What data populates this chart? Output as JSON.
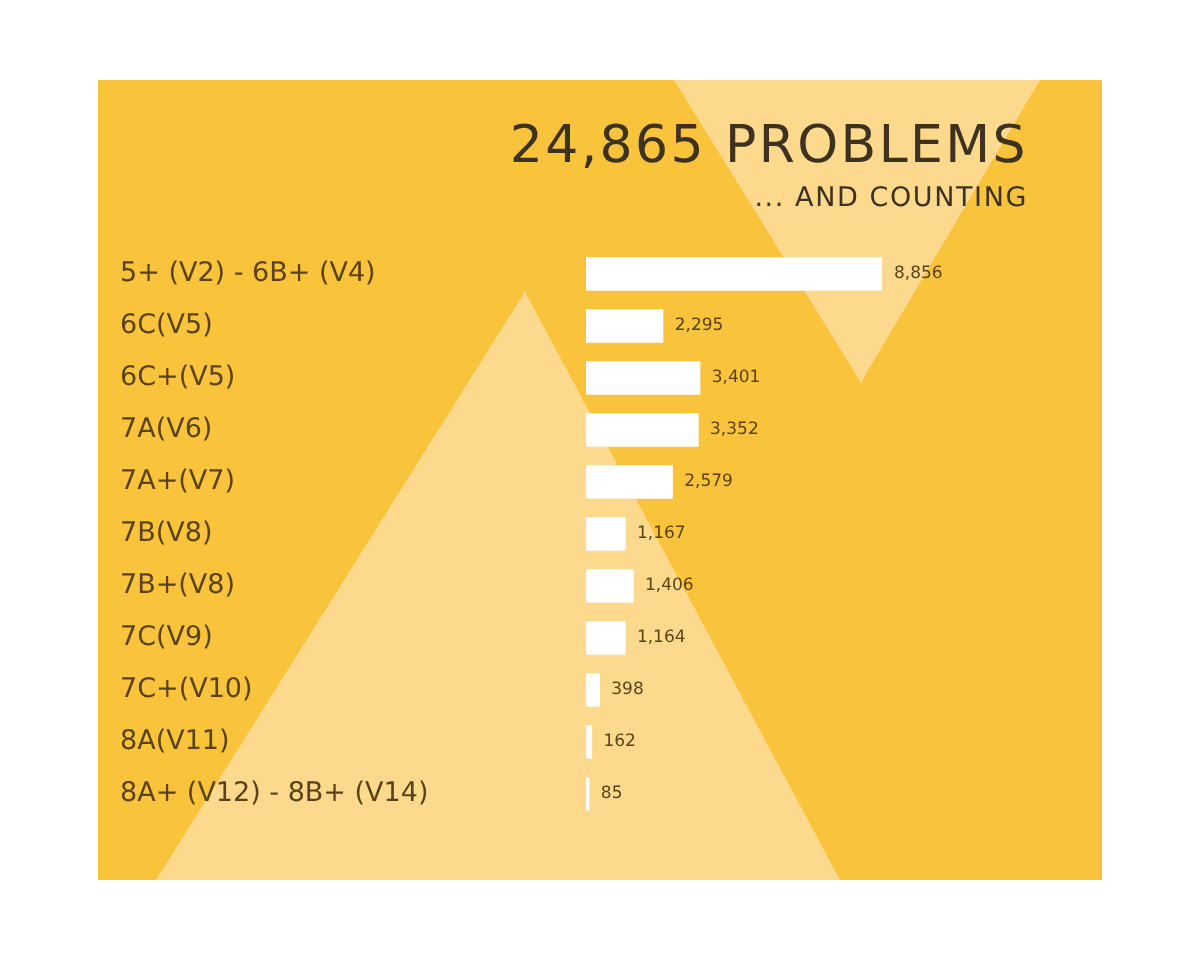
{
  "chart_data": {
    "type": "bar",
    "orientation": "horizontal",
    "title": "24,865 PROBLEMS",
    "subtitle": "... AND COUNTING",
    "categories": [
      "5+ (V2) - 6B+ (V4)",
      "6C(V5)",
      "6C+(V5)",
      "7A(V6)",
      "7A+(V7)",
      "7B(V8)",
      "7B+(V8)",
      "7C(V9)",
      "7C+(V10)",
      "8A(V11)",
      "8A+ (V12) - 8B+ (V14)"
    ],
    "values": [
      8856,
      2295,
      3401,
      3352,
      2579,
      1167,
      1406,
      1164,
      398,
      162,
      85
    ],
    "value_labels": [
      "8,856",
      "2,295",
      "3,401",
      "3,352",
      "2,579",
      "1,167",
      "1,406",
      "1,164",
      "398",
      "162",
      "85"
    ],
    "color": "#ffffff",
    "tick_labels": "y"
  }
}
